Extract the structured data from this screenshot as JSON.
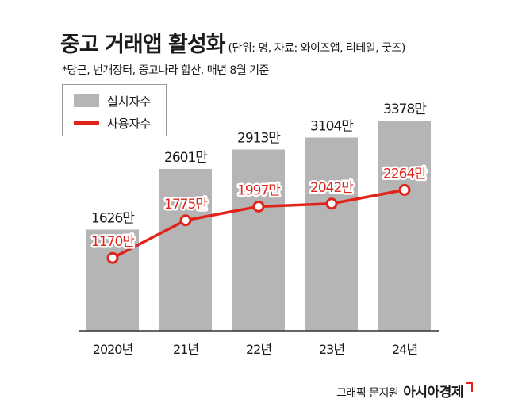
{
  "header": {
    "title": "중고 거래앱 활성화",
    "subtitle": "(단위: 명, 자료: 와이즈앱, 리테일, 굿즈)",
    "footnote": "*당근, 번개장터, 중고나라 합산, 매년 8월 기준"
  },
  "credit": {
    "text": "그래픽 문지원",
    "brand": "아시아경제"
  },
  "colors": {
    "bar": "#b5b5b5",
    "line": "#e2231a",
    "axis": "#333333"
  },
  "chart_data": {
    "type": "bar",
    "categories": [
      "2020년",
      "21년",
      "22년",
      "23년",
      "24년"
    ],
    "series": [
      {
        "name": "설치자수",
        "type": "bar",
        "values": [
          1626,
          2601,
          2913,
          3104,
          3378
        ],
        "labels": [
          "1626만",
          "2601만",
          "2913만",
          "3104만",
          "3378만"
        ]
      },
      {
        "name": "사용자수",
        "type": "line",
        "values": [
          1170,
          1775,
          1997,
          2042,
          2264
        ],
        "labels": [
          "1170만",
          "1775만",
          "1997만",
          "2042만",
          "2264만"
        ]
      }
    ],
    "legend": "top-left",
    "grid": false
  }
}
